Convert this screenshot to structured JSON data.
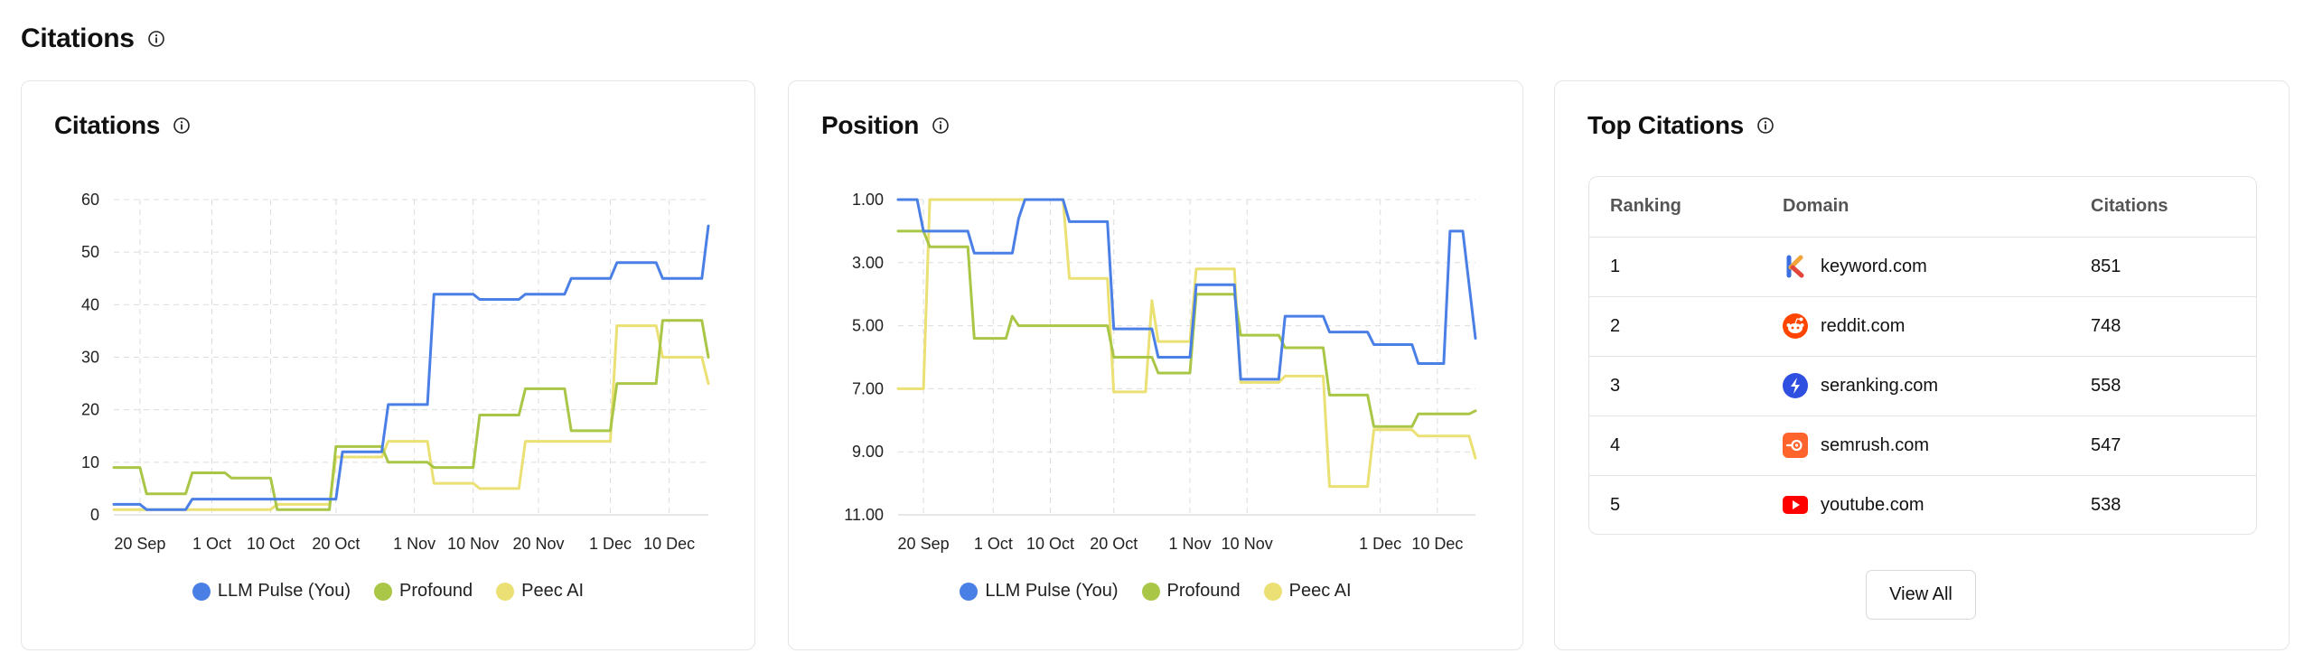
{
  "section": {
    "title": "Citations"
  },
  "citations_card": {
    "title": "Citations",
    "legend": [
      {
        "label": "LLM Pulse (You)",
        "color": "#4a7fe6"
      },
      {
        "label": "Profound",
        "color": "#a9c646"
      },
      {
        "label": "Peec AI",
        "color": "#ebe073"
      }
    ]
  },
  "position_card": {
    "title": "Position",
    "legend": [
      {
        "label": "LLM Pulse (You)",
        "color": "#4a7fe6"
      },
      {
        "label": "Profound",
        "color": "#a9c646"
      },
      {
        "label": "Peec AI",
        "color": "#ebe073"
      }
    ]
  },
  "top_citations": {
    "title": "Top Citations",
    "headers": {
      "ranking": "Ranking",
      "domain": "Domain",
      "citations": "Citations"
    },
    "rows": [
      {
        "rank": "1",
        "domain": "keyword.com",
        "citations": "851",
        "icon": "keyword-icon"
      },
      {
        "rank": "2",
        "domain": "reddit.com",
        "citations": "748",
        "icon": "reddit-icon"
      },
      {
        "rank": "3",
        "domain": "seranking.com",
        "citations": "558",
        "icon": "seranking-icon"
      },
      {
        "rank": "4",
        "domain": "semrush.com",
        "citations": "547",
        "icon": "semrush-icon"
      },
      {
        "rank": "5",
        "domain": "youtube.com",
        "citations": "538",
        "icon": "youtube-icon"
      }
    ],
    "view_all_label": "View All"
  },
  "chart_data": [
    {
      "type": "line",
      "title": "Citations",
      "x_tick_labels": [
        "20 Sep",
        "1 Oct",
        "10 Oct",
        "20 Oct",
        "1 Nov",
        "10 Nov",
        "20 Nov",
        "1 Dec",
        "10 Dec"
      ],
      "x_tick_dates": [
        "2024-09-20",
        "2024-10-01",
        "2024-10-10",
        "2024-10-20",
        "2024-11-01",
        "2024-11-10",
        "2024-11-20",
        "2024-12-01",
        "2024-12-10"
      ],
      "y_ticks": [
        0,
        10,
        20,
        30,
        40,
        50,
        60
      ],
      "ylim": [
        0,
        60
      ],
      "xlim": [
        "2024-09-16",
        "2024-12-16"
      ],
      "grid": true,
      "legend_position": "bottom",
      "series": [
        {
          "name": "LLM Pulse (You)",
          "color": "#4a7fe6",
          "points": [
            [
              "2024-09-16",
              2
            ],
            [
              "2024-09-20",
              2
            ],
            [
              "2024-09-21",
              1
            ],
            [
              "2024-09-27",
              1
            ],
            [
              "2024-09-28",
              3
            ],
            [
              "2024-10-20",
              3
            ],
            [
              "2024-10-21",
              12
            ],
            [
              "2024-10-27",
              12
            ],
            [
              "2024-10-28",
              21
            ],
            [
              "2024-11-03",
              21
            ],
            [
              "2024-11-04",
              42
            ],
            [
              "2024-11-10",
              42
            ],
            [
              "2024-11-11",
              41
            ],
            [
              "2024-11-17",
              41
            ],
            [
              "2024-11-18",
              42
            ],
            [
              "2024-11-24",
              42
            ],
            [
              "2024-11-25",
              45
            ],
            [
              "2024-12-01",
              45
            ],
            [
              "2024-12-02",
              48
            ],
            [
              "2024-12-08",
              48
            ],
            [
              "2024-12-09",
              45
            ],
            [
              "2024-12-15",
              45
            ],
            [
              "2024-12-16",
              55
            ]
          ]
        },
        {
          "name": "Profound",
          "color": "#a9c646",
          "points": [
            [
              "2024-09-16",
              9
            ],
            [
              "2024-09-20",
              9
            ],
            [
              "2024-09-21",
              4
            ],
            [
              "2024-09-27",
              4
            ],
            [
              "2024-09-28",
              8
            ],
            [
              "2024-10-03",
              8
            ],
            [
              "2024-10-04",
              7
            ],
            [
              "2024-10-10",
              7
            ],
            [
              "2024-10-11",
              1
            ],
            [
              "2024-10-19",
              1
            ],
            [
              "2024-10-20",
              13
            ],
            [
              "2024-10-27",
              13
            ],
            [
              "2024-10-28",
              10
            ],
            [
              "2024-11-03",
              10
            ],
            [
              "2024-11-04",
              9
            ],
            [
              "2024-11-10",
              9
            ],
            [
              "2024-11-11",
              19
            ],
            [
              "2024-11-17",
              19
            ],
            [
              "2024-11-18",
              24
            ],
            [
              "2024-11-24",
              24
            ],
            [
              "2024-11-25",
              16
            ],
            [
              "2024-12-01",
              16
            ],
            [
              "2024-12-02",
              25
            ],
            [
              "2024-12-08",
              25
            ],
            [
              "2024-12-09",
              37
            ],
            [
              "2024-12-15",
              37
            ],
            [
              "2024-12-16",
              30
            ]
          ]
        },
        {
          "name": "Peec AI",
          "color": "#ebe073",
          "points": [
            [
              "2024-09-16",
              1
            ],
            [
              "2024-10-10",
              1
            ],
            [
              "2024-10-11",
              2
            ],
            [
              "2024-10-19",
              2
            ],
            [
              "2024-10-20",
              11
            ],
            [
              "2024-10-27",
              11
            ],
            [
              "2024-10-28",
              14
            ],
            [
              "2024-11-03",
              14
            ],
            [
              "2024-11-04",
              6
            ],
            [
              "2024-11-10",
              6
            ],
            [
              "2024-11-11",
              5
            ],
            [
              "2024-11-17",
              5
            ],
            [
              "2024-11-18",
              14
            ],
            [
              "2024-12-01",
              14
            ],
            [
              "2024-12-02",
              36
            ],
            [
              "2024-12-08",
              36
            ],
            [
              "2024-12-09",
              30
            ],
            [
              "2024-12-15",
              30
            ],
            [
              "2024-12-16",
              25
            ]
          ]
        }
      ]
    },
    {
      "type": "line",
      "title": "Position",
      "x_tick_labels": [
        "20 Sep",
        "1 Oct",
        "10 Oct",
        "20 Oct",
        "1 Nov",
        "10 Nov",
        "1 Dec",
        "10 Dec"
      ],
      "x_tick_dates": [
        "2024-09-20",
        "2024-10-01",
        "2024-10-10",
        "2024-10-20",
        "2024-11-01",
        "2024-11-10",
        "2024-12-01",
        "2024-12-10"
      ],
      "y_ticks": [
        "1.00",
        "3.00",
        "5.00",
        "7.00",
        "9.00",
        "11.00"
      ],
      "ylim": [
        11,
        1
      ],
      "y_inverted": true,
      "xlim": [
        "2024-09-16",
        "2024-12-16"
      ],
      "grid": true,
      "legend_position": "bottom",
      "series": [
        {
          "name": "LLM Pulse (You)",
          "color": "#4a7fe6",
          "points": [
            [
              "2024-09-16",
              1.0
            ],
            [
              "2024-09-19",
              1.0
            ],
            [
              "2024-09-20",
              2.0
            ],
            [
              "2024-09-27",
              2.0
            ],
            [
              "2024-09-28",
              2.7
            ],
            [
              "2024-10-04",
              2.7
            ],
            [
              "2024-10-05",
              1.6
            ],
            [
              "2024-10-06",
              1.0
            ],
            [
              "2024-10-12",
              1.0
            ],
            [
              "2024-10-13",
              1.7
            ],
            [
              "2024-10-19",
              1.7
            ],
            [
              "2024-10-20",
              5.1
            ],
            [
              "2024-10-26",
              5.1
            ],
            [
              "2024-10-27",
              6.0
            ],
            [
              "2024-11-01",
              6.0
            ],
            [
              "2024-11-02",
              3.7
            ],
            [
              "2024-11-08",
              3.7
            ],
            [
              "2024-11-09",
              6.7
            ],
            [
              "2024-11-15",
              6.7
            ],
            [
              "2024-11-16",
              4.7
            ],
            [
              "2024-11-22",
              4.7
            ],
            [
              "2024-11-23",
              5.2
            ],
            [
              "2024-11-29",
              5.2
            ],
            [
              "2024-11-30",
              5.6
            ],
            [
              "2024-12-06",
              5.6
            ],
            [
              "2024-12-07",
              6.2
            ],
            [
              "2024-12-11",
              6.2
            ],
            [
              "2024-12-12",
              2.0
            ],
            [
              "2024-12-14",
              2.0
            ],
            [
              "2024-12-16",
              5.4
            ]
          ]
        },
        {
          "name": "Profound",
          "color": "#a9c646",
          "points": [
            [
              "2024-09-16",
              2.0
            ],
            [
              "2024-09-20",
              2.0
            ],
            [
              "2024-09-21",
              2.5
            ],
            [
              "2024-09-27",
              2.5
            ],
            [
              "2024-09-28",
              5.4
            ],
            [
              "2024-10-03",
              5.4
            ],
            [
              "2024-10-04",
              4.7
            ],
            [
              "2024-10-05",
              5.0
            ],
            [
              "2024-10-19",
              5.0
            ],
            [
              "2024-10-20",
              6.0
            ],
            [
              "2024-10-26",
              6.0
            ],
            [
              "2024-10-27",
              6.5
            ],
            [
              "2024-11-01",
              6.5
            ],
            [
              "2024-11-02",
              4.0
            ],
            [
              "2024-11-08",
              4.0
            ],
            [
              "2024-11-09",
              5.3
            ],
            [
              "2024-11-15",
              5.3
            ],
            [
              "2024-11-16",
              5.7
            ],
            [
              "2024-11-22",
              5.7
            ],
            [
              "2024-11-23",
              7.2
            ],
            [
              "2024-11-29",
              7.2
            ],
            [
              "2024-11-30",
              8.2
            ],
            [
              "2024-12-06",
              8.2
            ],
            [
              "2024-12-07",
              7.8
            ],
            [
              "2024-12-15",
              7.8
            ],
            [
              "2024-12-16",
              7.7
            ]
          ]
        },
        {
          "name": "Peec AI",
          "color": "#ebe073",
          "points": [
            [
              "2024-09-16",
              7.0
            ],
            [
              "2024-09-20",
              7.0
            ],
            [
              "2024-09-21",
              1.0
            ],
            [
              "2024-10-12",
              1.0
            ],
            [
              "2024-10-13",
              3.5
            ],
            [
              "2024-10-19",
              3.5
            ],
            [
              "2024-10-20",
              7.1
            ],
            [
              "2024-10-25",
              7.1
            ],
            [
              "2024-10-26",
              4.2
            ],
            [
              "2024-10-27",
              5.5
            ],
            [
              "2024-11-01",
              5.5
            ],
            [
              "2024-11-02",
              3.2
            ],
            [
              "2024-11-08",
              3.2
            ],
            [
              "2024-11-09",
              6.8
            ],
            [
              "2024-11-15",
              6.8
            ],
            [
              "2024-11-16",
              6.6
            ],
            [
              "2024-11-22",
              6.6
            ],
            [
              "2024-11-23",
              10.1
            ],
            [
              "2024-11-29",
              10.1
            ],
            [
              "2024-11-30",
              8.3
            ],
            [
              "2024-12-06",
              8.3
            ],
            [
              "2024-12-07",
              8.5
            ],
            [
              "2024-12-15",
              8.5
            ],
            [
              "2024-12-16",
              9.2
            ]
          ]
        }
      ]
    }
  ]
}
